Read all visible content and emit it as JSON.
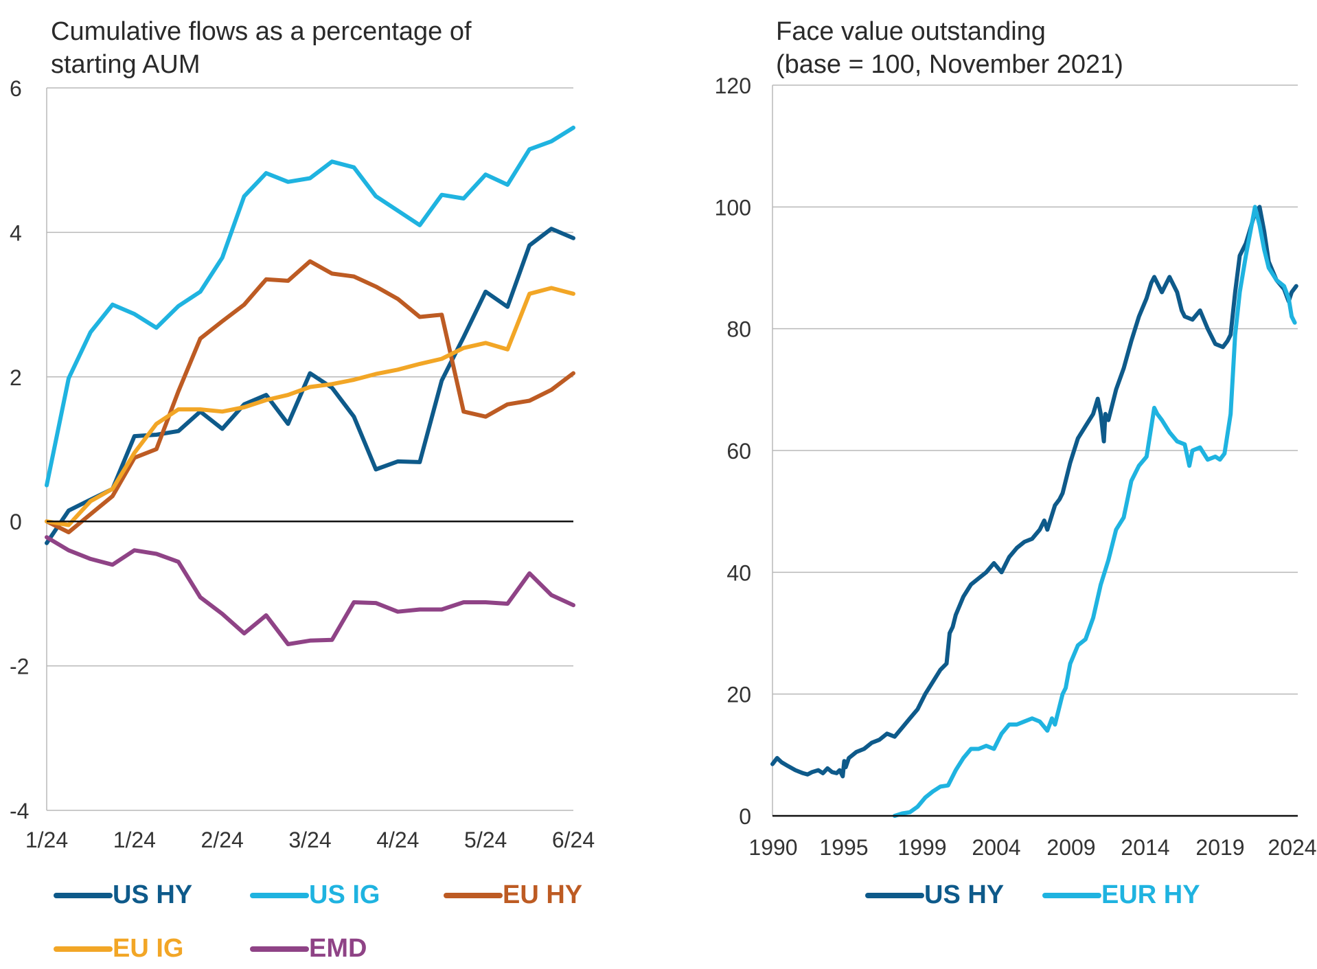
{
  "chart_data": [
    {
      "type": "line",
      "title_lines": [
        "Cumulative flows as a percentage of",
        "starting AUM"
      ],
      "xlabel": "",
      "ylabel": "",
      "ylim": [
        -4,
        6
      ],
      "yticks": [
        "6",
        "4",
        "2",
        "0",
        "-2",
        "-4"
      ],
      "x_tick_labels": [
        "1/24",
        "1/24",
        "2/24",
        "3/24",
        "4/24",
        "5/24",
        "6/24"
      ],
      "x_index_range": [
        0,
        24
      ],
      "grid": true,
      "legend_position": "bottom",
      "series": [
        {
          "name": "US HY",
          "color": "#0e5a8a",
          "values": [
            -0.3,
            0.15,
            0.3,
            0.45,
            1.18,
            1.2,
            1.25,
            1.52,
            1.28,
            1.62,
            1.75,
            1.35,
            2.05,
            1.85,
            1.45,
            0.72,
            0.83,
            0.82,
            1.95,
            2.55,
            3.18,
            2.97,
            3.82,
            4.05,
            3.92
          ]
        },
        {
          "name": "US IG",
          "color": "#1fb3e0",
          "values": [
            0.5,
            1.98,
            2.62,
            3.0,
            2.87,
            2.68,
            2.98,
            3.18,
            3.65,
            4.5,
            4.82,
            4.7,
            4.75,
            4.98,
            4.9,
            4.5,
            4.3,
            4.1,
            4.52,
            4.47,
            4.8,
            4.66,
            5.15,
            5.26,
            5.45
          ]
        },
        {
          "name": "EU HY",
          "color": "#bd5b23",
          "values": [
            0.0,
            -0.15,
            0.1,
            0.35,
            0.88,
            1.0,
            1.8,
            2.53,
            2.77,
            3.0,
            3.35,
            3.33,
            3.6,
            3.43,
            3.39,
            3.25,
            3.08,
            2.83,
            2.86,
            1.52,
            1.45,
            1.62,
            1.67,
            1.82,
            2.05
          ]
        },
        {
          "name": "EU IG",
          "color": "#f2a626",
          "values": [
            0.0,
            -0.05,
            0.28,
            0.45,
            0.95,
            1.35,
            1.55,
            1.55,
            1.52,
            1.58,
            1.68,
            1.75,
            1.86,
            1.9,
            1.96,
            2.04,
            2.1,
            2.18,
            2.25,
            2.4,
            2.47,
            2.38,
            3.15,
            3.23,
            3.15
          ]
        },
        {
          "name": "EMD",
          "color": "#8f4386",
          "values": [
            -0.22,
            -0.4,
            -0.52,
            -0.6,
            -0.4,
            -0.45,
            -0.56,
            -1.05,
            -1.28,
            -1.55,
            -1.3,
            -1.7,
            -1.65,
            -1.64,
            -1.12,
            -1.13,
            -1.25,
            -1.22,
            -1.22,
            -1.12,
            -1.12,
            -1.14,
            -0.72,
            -1.02,
            -1.16
          ]
        }
      ]
    },
    {
      "type": "line",
      "title_lines": [
        "Face value outstanding",
        "(base = 100, November 2021)"
      ],
      "xlabel": "",
      "ylabel": "",
      "ylim": [
        0,
        120
      ],
      "yticks": [
        "120",
        "100",
        "80",
        "60",
        "40",
        "20",
        "0"
      ],
      "x_tick_labels": [
        "1990",
        "1995",
        "1999",
        "2004",
        "2009",
        "2014",
        "2019",
        "2024"
      ],
      "xlim": [
        1990,
        2024.4
      ],
      "grid": true,
      "legend_position": "bottom",
      "series": [
        {
          "name": "US HY",
          "color": "#0e5a8a",
          "x": [
            1990.0,
            1990.3,
            1990.6,
            1991.0,
            1991.5,
            1992.0,
            1992.3,
            1992.6,
            1993.0,
            1993.3,
            1993.6,
            1993.9,
            1994.2,
            1994.4,
            1994.6,
            1994.7,
            1994.8,
            1995.0,
            1995.5,
            1996.0,
            1996.5,
            1997.0,
            1997.5,
            1998.0,
            1998.5,
            1999.0,
            1999.5,
            2000.0,
            2000.5,
            2001.0,
            2001.4,
            2001.6,
            2001.8,
            2002.0,
            2002.5,
            2003.0,
            2003.5,
            2004.0,
            2004.5,
            2005.0,
            2005.2,
            2005.5,
            2006.0,
            2006.5,
            2007.0,
            2007.5,
            2007.8,
            2008.0,
            2008.5,
            2008.8,
            2009.0,
            2009.5,
            2010.0,
            2010.5,
            2011.0,
            2011.3,
            2011.5,
            2011.7,
            2011.8,
            2012.0,
            2012.5,
            2013.0,
            2013.5,
            2014.0,
            2014.5,
            2014.8,
            2015.0,
            2015.5,
            2016.0,
            2016.5,
            2016.8,
            2017.0,
            2017.5,
            2018.0,
            2018.5,
            2019.0,
            2019.5,
            2019.8,
            2020.0,
            2020.3,
            2020.6,
            2021.0,
            2021.3,
            2021.6,
            2021.9,
            2022.2,
            2022.5,
            2023.0,
            2023.5,
            2023.8,
            2024.0,
            2024.3
          ],
          "values": [
            8.5,
            9.5,
            8.8,
            8.2,
            7.5,
            7.0,
            6.8,
            7.2,
            7.5,
            7.0,
            7.8,
            7.2,
            7.0,
            7.5,
            6.5,
            9.0,
            8.0,
            9.5,
            10.5,
            11.0,
            12.0,
            12.5,
            13.5,
            13.0,
            14.5,
            16.0,
            17.5,
            20.0,
            22.0,
            24.0,
            25.0,
            30.0,
            31.0,
            33.0,
            36.0,
            38.0,
            39.0,
            40.0,
            41.5,
            40.0,
            41.0,
            42.5,
            44.0,
            45.0,
            45.5,
            47.0,
            48.5,
            47.0,
            51.0,
            52.0,
            53.0,
            58.0,
            62.0,
            64.0,
            66.0,
            68.5,
            66.0,
            61.5,
            66.0,
            65.0,
            70.0,
            73.5,
            78.0,
            82.0,
            85.0,
            87.5,
            88.5,
            86.0,
            88.5,
            86.0,
            83.0,
            82.0,
            81.5,
            83.0,
            80.0,
            77.5,
            77.0,
            78.0,
            79.0,
            86.0,
            92.0,
            94.0,
            96.5,
            99.0,
            100.0,
            96.0,
            91.0,
            88.0,
            86.5,
            84.5,
            86.0,
            87.0
          ]
        },
        {
          "name": "EUR HY",
          "color": "#1fb3e0",
          "x": [
            1998.0,
            1998.5,
            1999.0,
            1999.5,
            2000.0,
            2000.5,
            2001.0,
            2001.5,
            2002.0,
            2002.5,
            2003.0,
            2003.5,
            2004.0,
            2004.5,
            2005.0,
            2005.5,
            2006.0,
            2006.5,
            2007.0,
            2007.5,
            2008.0,
            2008.3,
            2008.5,
            2009.0,
            2009.2,
            2009.5,
            2010.0,
            2010.5,
            2011.0,
            2011.5,
            2012.0,
            2012.5,
            2013.0,
            2013.5,
            2014.0,
            2014.5,
            2015.0,
            2015.2,
            2015.5,
            2016.0,
            2016.5,
            2017.0,
            2017.3,
            2017.5,
            2018.0,
            2018.5,
            2019.0,
            2019.3,
            2019.6,
            2020.0,
            2020.3,
            2020.6,
            2021.0,
            2021.3,
            2021.6,
            2021.9,
            2022.2,
            2022.5,
            2023.0,
            2023.5,
            2023.8,
            2024.0,
            2024.2
          ],
          "values": [
            0.0,
            0.4,
            0.6,
            1.5,
            3.0,
            4.0,
            4.8,
            5.0,
            7.5,
            9.5,
            11.0,
            11.0,
            11.5,
            11.0,
            13.5,
            15.0,
            15.0,
            15.5,
            16.0,
            15.5,
            14.0,
            16.0,
            15.0,
            20.0,
            21.0,
            25.0,
            28.0,
            29.0,
            32.5,
            38.0,
            42.0,
            47.0,
            49.0,
            55.0,
            57.5,
            59.0,
            67.0,
            66.0,
            65.0,
            63.0,
            61.5,
            61.0,
            57.5,
            60.0,
            60.5,
            58.5,
            59.0,
            58.5,
            59.5,
            66.0,
            79.0,
            86.0,
            92.0,
            96.0,
            100.0,
            97.0,
            93.0,
            90.0,
            88.0,
            87.0,
            85.0,
            82.0,
            81.0
          ]
        }
      ]
    }
  ]
}
